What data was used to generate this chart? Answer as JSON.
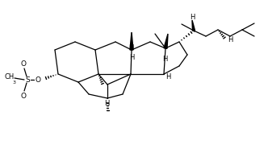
{
  "bg_color": "#ffffff",
  "line_color": "#000000",
  "lw": 0.9,
  "fig_width": 3.32,
  "fig_height": 2.0,
  "dpi": 100,
  "xlim": [
    0,
    332
  ],
  "ylim": [
    0,
    200
  ]
}
